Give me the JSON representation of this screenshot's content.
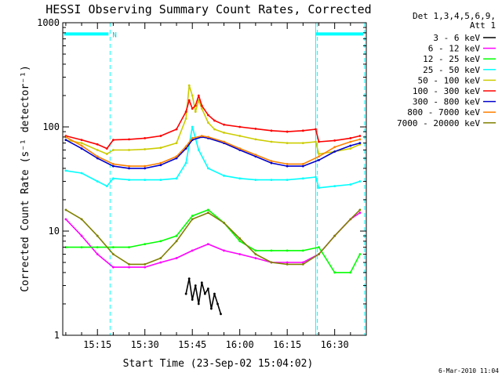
{
  "chart_data": {
    "type": "line",
    "title": "HESSI Observing Summary Count Rates, Corrected",
    "xlabel": "Start Time (23-Sep-02 15:04:02)",
    "ylabel": "Corrected Count Rate (s⁻¹ detector⁻¹)",
    "x_unit": "time",
    "xlim": [
      "15:04:02",
      "16:40:00"
    ],
    "ylim": [
      1,
      1000
    ],
    "yscale": "log",
    "grid": false,
    "legend_placement": "right",
    "legend_title": [
      "Det 1,3,4,5,6,9,",
      "Att 1"
    ],
    "x_ticks": [
      "15:15",
      "15:30",
      "15:45",
      "16:00",
      "16:15",
      "16:30"
    ],
    "y_ticks": [
      {
        "label": "1",
        "value": 1
      },
      {
        "label": "10",
        "value": 10
      },
      {
        "label": "100",
        "value": 100
      },
      {
        "label": "1000",
        "value": 1000
      }
    ],
    "markers": [
      {
        "time": "15:04:02",
        "color": "#00ffff",
        "style": "solid"
      },
      {
        "time": "15:19:00",
        "color": "#00ffff",
        "style": "dashed"
      },
      {
        "time": "16:24:00",
        "color": "#00ffff",
        "style": "solid"
      },
      {
        "time": "16:24:30",
        "color": "#00ffff",
        "style": "dashed"
      },
      {
        "time": "16:39:30",
        "color": "#00ffff",
        "style": "dashed"
      }
    ],
    "flag_bars": [
      {
        "start": "15:04:30",
        "end": "15:18:30",
        "value": 780,
        "label": "N"
      },
      {
        "start": "16:24:00",
        "end": "16:39:00",
        "value": 780,
        "label": ""
      }
    ],
    "footer": "6-Mar-2010 11:04",
    "series": [
      {
        "name": "3 - 6 keV",
        "color": "#000000",
        "x": [
          "15:43",
          "15:44",
          "15:45",
          "15:46",
          "15:47",
          "15:48",
          "15:49",
          "15:50",
          "15:51",
          "15:52",
          "15:53",
          "15:54"
        ],
        "values": [
          2.5,
          3.5,
          2.2,
          3.0,
          2.0,
          3.2,
          2.5,
          2.8,
          1.8,
          2.5,
          2.0,
          1.6
        ]
      },
      {
        "name": "6 - 12 keV",
        "color": "#ff00ff",
        "x": [
          "15:05",
          "15:10",
          "15:15",
          "15:20",
          "15:25",
          "15:30",
          "15:35",
          "15:40",
          "15:45",
          "15:50",
          "15:55",
          "16:00",
          "16:05",
          "16:10",
          "16:15",
          "16:20",
          "16:25",
          "16:30",
          "16:35",
          "16:38"
        ],
        "values": [
          13,
          9,
          6,
          4.5,
          4.5,
          4.5,
          5,
          5.5,
          6.5,
          7.5,
          6.5,
          6,
          5.5,
          5,
          5,
          5,
          6,
          9,
          13,
          15
        ]
      },
      {
        "name": "12 - 25 keV",
        "color": "#00ff00",
        "x": [
          "15:05",
          "15:10",
          "15:15",
          "15:20",
          "15:25",
          "15:30",
          "15:35",
          "15:40",
          "15:45",
          "15:50",
          "15:55",
          "16:00",
          "16:05",
          "16:10",
          "16:15",
          "16:20",
          "16:25",
          "16:30",
          "16:35",
          "16:38"
        ],
        "values": [
          7,
          7,
          7,
          7,
          7,
          7.5,
          8,
          9,
          14,
          16,
          12,
          8,
          6.5,
          6.5,
          6.5,
          6.5,
          7,
          4,
          4,
          6
        ]
      },
      {
        "name": "25 - 50 keV",
        "color": "#00ffff",
        "x": [
          "15:05",
          "15:10",
          "15:15",
          "15:18",
          "15:20",
          "15:25",
          "15:30",
          "15:35",
          "15:40",
          "15:43",
          "15:45",
          "15:47",
          "15:50",
          "15:55",
          "16:00",
          "16:05",
          "16:10",
          "16:15",
          "16:20",
          "16:24",
          "16:25",
          "16:30",
          "16:35",
          "16:38"
        ],
        "values": [
          38,
          36,
          30,
          27,
          32,
          31,
          31,
          31,
          32,
          45,
          100,
          60,
          40,
          34,
          32,
          31,
          31,
          31,
          32,
          33,
          26,
          27,
          28,
          30
        ]
      },
      {
        "name": "50 - 100 keV",
        "color": "#cccc00",
        "x": [
          "15:05",
          "15:10",
          "15:15",
          "15:18",
          "15:20",
          "15:25",
          "15:30",
          "15:35",
          "15:40",
          "15:43",
          "15:44",
          "15:45",
          "15:46",
          "15:47",
          "15:48",
          "15:50",
          "15:52",
          "15:55",
          "16:00",
          "16:05",
          "16:10",
          "16:15",
          "16:20",
          "16:24",
          "16:25",
          "16:30",
          "16:35",
          "16:38"
        ],
        "values": [
          75,
          70,
          60,
          55,
          60,
          60,
          61,
          63,
          70,
          120,
          250,
          200,
          140,
          180,
          150,
          110,
          95,
          88,
          82,
          76,
          72,
          70,
          70,
          72,
          55,
          58,
          62,
          68
        ]
      },
      {
        "name": "100 - 300 keV",
        "color": "#ff0000",
        "x": [
          "15:05",
          "15:10",
          "15:15",
          "15:18",
          "15:20",
          "15:25",
          "15:30",
          "15:35",
          "15:40",
          "15:43",
          "15:44",
          "15:45",
          "15:46",
          "15:47",
          "15:48",
          "15:50",
          "15:52",
          "15:55",
          "16:00",
          "16:05",
          "16:10",
          "16:15",
          "16:20",
          "16:24",
          "16:25",
          "16:30",
          "16:35",
          "16:38"
        ],
        "values": [
          82,
          75,
          68,
          62,
          75,
          76,
          78,
          82,
          95,
          140,
          180,
          150,
          160,
          200,
          160,
          130,
          115,
          105,
          100,
          96,
          92,
          90,
          92,
          95,
          72,
          74,
          78,
          82
        ]
      },
      {
        "name": "300 - 800 keV",
        "color": "#0000cc",
        "x": [
          "15:05",
          "15:10",
          "15:15",
          "15:20",
          "15:25",
          "15:30",
          "15:35",
          "15:40",
          "15:43",
          "15:45",
          "15:48",
          "15:50",
          "15:55",
          "16:00",
          "16:05",
          "16:10",
          "16:15",
          "16:20",
          "16:25",
          "16:30",
          "16:35",
          "16:38"
        ],
        "values": [
          75,
          62,
          50,
          42,
          40,
          40,
          43,
          50,
          62,
          75,
          80,
          78,
          70,
          60,
          52,
          45,
          42,
          42,
          48,
          58,
          66,
          70
        ]
      },
      {
        "name": "800 - 7000 keV",
        "color": "#ff8000",
        "x": [
          "15:05",
          "15:10",
          "15:15",
          "15:20",
          "15:25",
          "15:30",
          "15:35",
          "15:40",
          "15:43",
          "15:45",
          "15:48",
          "15:50",
          "15:55",
          "16:00",
          "16:05",
          "16:10",
          "16:15",
          "16:20",
          "16:25",
          "16:30",
          "16:35",
          "16:38"
        ],
        "values": [
          80,
          66,
          52,
          44,
          42,
          42,
          45,
          52,
          65,
          78,
          82,
          80,
          72,
          62,
          54,
          47,
          44,
          44,
          52,
          64,
          72,
          76
        ]
      },
      {
        "name": "7000 - 20000 keV",
        "color": "#808000",
        "x": [
          "15:05",
          "15:10",
          "15:15",
          "15:20",
          "15:25",
          "15:30",
          "15:35",
          "15:40",
          "15:45",
          "15:50",
          "15:55",
          "16:00",
          "16:05",
          "16:10",
          "16:15",
          "16:20",
          "16:25",
          "16:30",
          "16:35",
          "16:38"
        ],
        "values": [
          16,
          13,
          9,
          6,
          4.8,
          4.8,
          5.5,
          8,
          13,
          15,
          12,
          8.5,
          6,
          5,
          4.8,
          4.8,
          6,
          9,
          13,
          16
        ]
      }
    ]
  }
}
